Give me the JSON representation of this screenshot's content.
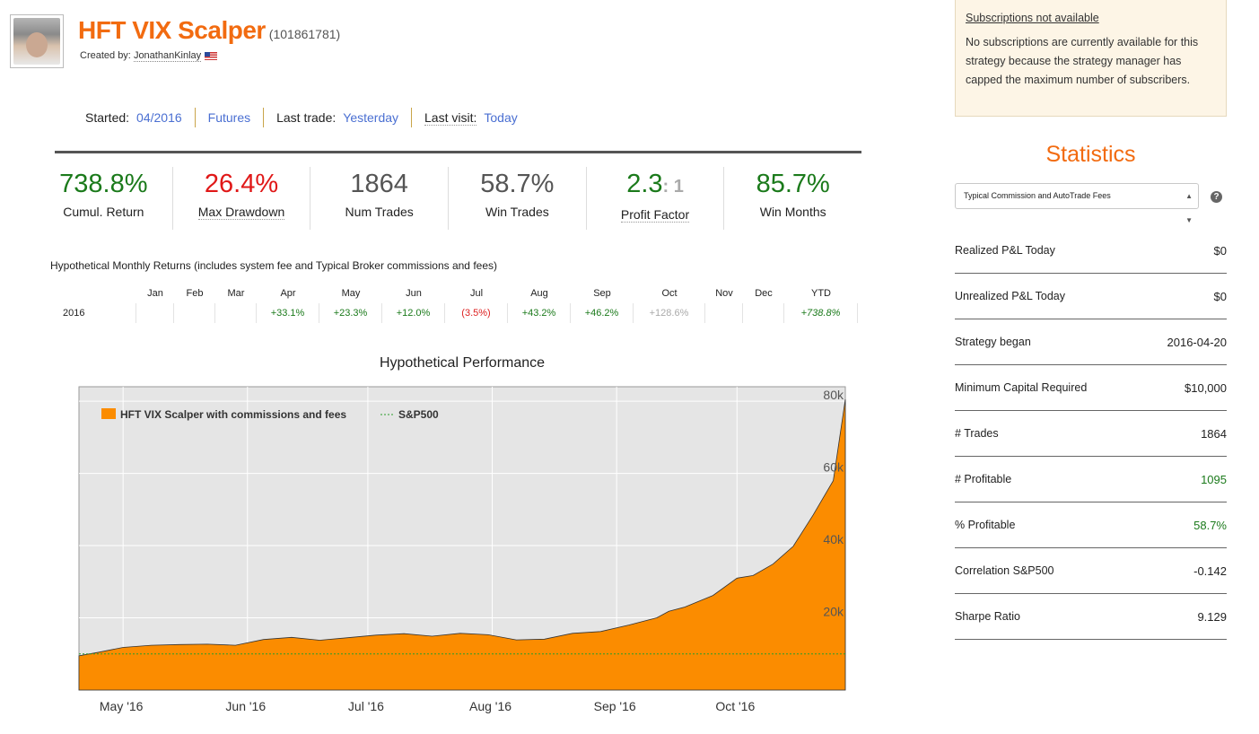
{
  "header": {
    "title": "HFT VIX Scalper",
    "id": "(101861781)",
    "created_by_label": "Created by:",
    "creator": "JonathanKinlay"
  },
  "meta": {
    "started_label": "Started:",
    "started": "04/2016",
    "type": "Futures",
    "last_trade_label": "Last trade:",
    "last_trade": "Yesterday",
    "last_visit_label": "Last visit:",
    "last_visit": "Today"
  },
  "stats": [
    {
      "value": "738.8%",
      "label": "Cumul. Return",
      "color": "#1b7a1b"
    },
    {
      "value": "26.4%",
      "label": "Max Drawdown",
      "color": "#e01818"
    },
    {
      "value": "1864",
      "label": "Num Trades",
      "color": "#555555"
    },
    {
      "value": "58.7%",
      "label": "Win Trades",
      "color": "#555555"
    },
    {
      "value": "2.3",
      "suffix": ": 1",
      "label": "Profit Factor",
      "color": "#1b7a1b"
    },
    {
      "value": "85.7%",
      "label": "Win Months",
      "color": "#1b7a1b"
    }
  ],
  "monthly": {
    "title": "Hypothetical Monthly Returns (includes system fee and Typical Broker commissions and fees)",
    "headers": [
      "Jan",
      "Feb",
      "Mar",
      "Apr",
      "May",
      "Jun",
      "Jul",
      "Aug",
      "Sep",
      "Oct",
      "Nov",
      "Dec",
      "YTD"
    ],
    "year": "2016",
    "values": [
      "",
      "",
      "",
      "+33.1%",
      "+23.3%",
      "+12.0%",
      "(3.5%)",
      "+43.2%",
      "+46.2%",
      "+128.6%",
      "",
      "",
      "+738.8%"
    ]
  },
  "chart_title": "Hypothetical Performance",
  "chart_data": {
    "type": "area",
    "title": "Hypothetical Performance",
    "x_ticks": [
      "May '16",
      "Jun '16",
      "Jul '16",
      "Aug '16",
      "Sep '16",
      "Oct '16"
    ],
    "y_ticks": [
      "20k",
      "40k",
      "60k",
      "80k"
    ],
    "ylim": [
      0,
      84000
    ],
    "legend_position": "top-left",
    "series": [
      {
        "name": "HFT VIX Scalper with commissions and fees",
        "color": "#fb8c00",
        "x": [
          "2016-04-20",
          "2016-04-25",
          "2016-05-01",
          "2016-05-08",
          "2016-05-15",
          "2016-05-22",
          "2016-05-29",
          "2016-06-05",
          "2016-06-12",
          "2016-06-19",
          "2016-06-26",
          "2016-07-03",
          "2016-07-10",
          "2016-07-17",
          "2016-07-24",
          "2016-07-31",
          "2016-08-07",
          "2016-08-14",
          "2016-08-21",
          "2016-08-28",
          "2016-09-04",
          "2016-09-11",
          "2016-09-14",
          "2016-09-18",
          "2016-09-25",
          "2016-10-01",
          "2016-10-05",
          "2016-10-10",
          "2016-10-15",
          "2016-10-20",
          "2016-10-25",
          "2016-10-28"
        ],
        "values": [
          9500,
          10500,
          11800,
          12400,
          12600,
          12700,
          12400,
          14000,
          14600,
          13800,
          14500,
          15200,
          15600,
          14900,
          15700,
          15300,
          13900,
          14100,
          15700,
          16200,
          18000,
          20000,
          21800,
          23000,
          26200,
          31000,
          31700,
          34900,
          39800,
          48500,
          58000,
          80500
        ]
      },
      {
        "name": "S&P500",
        "color": "#2a9d2a",
        "x": [
          "2016-04-20",
          "2016-10-28"
        ],
        "values": [
          10000,
          10000
        ]
      }
    ]
  },
  "subscriptions": {
    "heading": "Subscriptions not available",
    "body": "No subscriptions are currently available for this strategy because the strategy manager has capped the maximum number of subscribers."
  },
  "statistics": {
    "title": "Statistics",
    "select_value": "Typical Commission and AutoTrade Fees",
    "rows": [
      {
        "label": "Realized P&L Today",
        "value": "$0"
      },
      {
        "label": "Unrealized P&L Today",
        "value": "$0"
      },
      {
        "label": "Strategy began",
        "value": "2016-04-20"
      },
      {
        "label": "Minimum Capital Required",
        "value": "$10,000"
      },
      {
        "label": "# Trades",
        "value": "1864"
      },
      {
        "label": "# Profitable",
        "value": "1095",
        "green": true
      },
      {
        "label": "% Profitable",
        "value": "58.7%",
        "green": true
      },
      {
        "label": "Correlation S&P500",
        "value": "-0.142"
      },
      {
        "label": "Sharpe Ratio",
        "value": "9.129"
      }
    ]
  }
}
